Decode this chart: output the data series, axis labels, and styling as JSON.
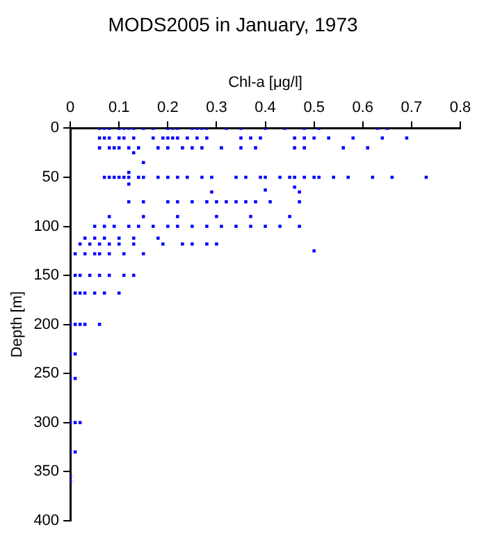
{
  "chart_data": {
    "type": "scatter",
    "title": "MODS2005 in January, 1973",
    "xlabel": "Chl-a [μg/l]",
    "ylabel": "Depth [m]",
    "marker": "square",
    "grid": false,
    "legend": false,
    "xlim": [
      0,
      0.8
    ],
    "xticks": [
      0,
      0.1,
      0.2,
      0.3,
      0.4,
      0.5,
      0.6,
      0.7,
      0.8
    ],
    "ylim": [
      400,
      0
    ],
    "yticks": [
      0,
      50,
      100,
      150,
      200,
      250,
      300,
      350,
      400
    ],
    "series": [
      {
        "color": "#0000ff",
        "x": [
          0.06,
          0.07,
          0.08,
          0.1,
          0.11,
          0.12,
          0.13,
          0.15,
          0.17,
          0.2,
          0.21,
          0.22,
          0.25,
          0.26,
          0.27,
          0.28,
          0.32,
          0.35,
          0.4,
          0.44,
          0.48,
          0.51,
          0.63,
          0.65,
          0.06,
          0.07,
          0.08,
          0.1,
          0.11,
          0.13,
          0.17,
          0.19,
          0.2,
          0.21,
          0.22,
          0.24,
          0.26,
          0.28,
          0.35,
          0.37,
          0.39,
          0.46,
          0.48,
          0.5,
          0.53,
          0.58,
          0.64,
          0.69,
          0.06,
          0.08,
          0.09,
          0.1,
          0.12,
          0.14,
          0.18,
          0.2,
          0.23,
          0.25,
          0.27,
          0.31,
          0.35,
          0.38,
          0.46,
          0.48,
          0.56,
          0.61,
          0.07,
          0.08,
          0.09,
          0.1,
          0.11,
          0.12,
          0.14,
          0.15,
          0.18,
          0.2,
          0.22,
          0.24,
          0.27,
          0.29,
          0.34,
          0.36,
          0.39,
          0.4,
          0.43,
          0.45,
          0.46,
          0.48,
          0.5,
          0.51,
          0.54,
          0.57,
          0.62,
          0.66,
          0.73,
          0.13,
          0.15,
          0.12,
          0.12,
          0.4,
          0.46,
          0.12,
          0.15,
          0.2,
          0.22,
          0.25,
          0.28,
          0.3,
          0.32,
          0.34,
          0.36,
          0.38,
          0.41,
          0.47,
          0.29,
          0.47,
          0.05,
          0.07,
          0.09,
          0.12,
          0.14,
          0.17,
          0.2,
          0.22,
          0.25,
          0.28,
          0.31,
          0.34,
          0.37,
          0.4,
          0.43,
          0.47,
          0.08,
          0.15,
          0.22,
          0.3,
          0.37,
          0.45,
          0.03,
          0.05,
          0.07,
          0.1,
          0.13,
          0.18,
          0.5,
          0.02,
          0.04,
          0.06,
          0.08,
          0.1,
          0.13,
          0.19,
          0.23,
          0.25,
          0.28,
          0.3,
          0.01,
          0.03,
          0.05,
          0.06,
          0.08,
          0.11,
          0.15,
          0.01,
          0.02,
          0.04,
          0.06,
          0.08,
          0.11,
          0.13,
          0.01,
          0.02,
          0.03,
          0.05,
          0.07,
          0.1,
          0,
          0.01,
          0.02,
          0.03,
          0.06,
          0,
          0.01,
          0,
          0.01,
          0,
          0.01,
          0.02,
          0,
          0.01,
          0,
          0
        ],
        "values": [
          0,
          0,
          0,
          0,
          0,
          0,
          0,
          0,
          0,
          0,
          0,
          0,
          0,
          0,
          0,
          0,
          0,
          0,
          0,
          0,
          0,
          0,
          0,
          0,
          10,
          10,
          10,
          10,
          10,
          10,
          10,
          10,
          10,
          10,
          10,
          10,
          10,
          10,
          10,
          10,
          10,
          10,
          10,
          10,
          10,
          10,
          10,
          10,
          20,
          20,
          20,
          20,
          20,
          20,
          20,
          20,
          20,
          20,
          20,
          20,
          20,
          20,
          20,
          20,
          20,
          20,
          50,
          50,
          50,
          50,
          50,
          50,
          50,
          50,
          50,
          50,
          50,
          50,
          50,
          50,
          50,
          50,
          50,
          50,
          50,
          50,
          50,
          50,
          50,
          50,
          50,
          50,
          50,
          50,
          50,
          25,
          35,
          45,
          57,
          63,
          60,
          75,
          75,
          75,
          75,
          75,
          75,
          75,
          75,
          75,
          75,
          75,
          75,
          75,
          65,
          65,
          100,
          100,
          100,
          100,
          100,
          100,
          100,
          100,
          100,
          100,
          100,
          100,
          100,
          100,
          100,
          100,
          90,
          90,
          90,
          90,
          90,
          90,
          112,
          112,
          112,
          112,
          112,
          112,
          125,
          118,
          118,
          118,
          118,
          118,
          118,
          118,
          118,
          118,
          118,
          118,
          128,
          128,
          128,
          128,
          128,
          128,
          128,
          150,
          150,
          150,
          150,
          150,
          150,
          150,
          168,
          168,
          168,
          168,
          168,
          168,
          200,
          200,
          200,
          200,
          200,
          230,
          230,
          255,
          255,
          300,
          300,
          300,
          330,
          330,
          355,
          360
        ]
      }
    ]
  }
}
